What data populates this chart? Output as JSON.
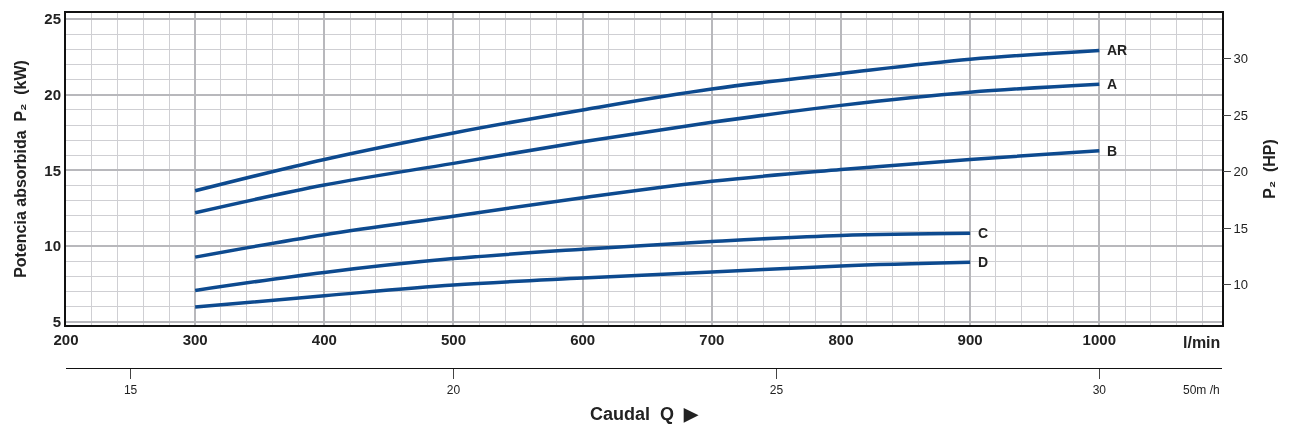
{
  "chart_data": {
    "type": "line",
    "xlabel": "l/min",
    "ylabel": "Potencia absorbida  P₂  (kW)",
    "y2label": "P₂  (HP)",
    "x2label": "50m /h",
    "annotations": [
      "Caudal  Q  ▶"
    ],
    "xlim": [
      200,
      1095
    ],
    "xticks": [
      200,
      300,
      400,
      500,
      600,
      700,
      800,
      900,
      1000
    ],
    "ylim": [
      4.8,
      25.4
    ],
    "yticks": [
      5,
      10,
      15,
      20,
      25
    ],
    "y2lim": [
      6.44,
      34.06
    ],
    "y2ticks": [
      10,
      15,
      20,
      25,
      30
    ],
    "x2lim": [
      14,
      31.9
    ],
    "x2ticks": [
      15,
      20,
      25,
      30
    ],
    "x": [
      300,
      400,
      500,
      600,
      700,
      800,
      900,
      1000
    ],
    "grid": true,
    "legend": false,
    "marker": "none",
    "line_style": "solid",
    "series": [
      {
        "name": "AR",
        "color": "#0d4a8f",
        "values": [
          13.66,
          15.73,
          17.48,
          19.0,
          20.38,
          21.4,
          22.34,
          22.93
        ]
      },
      {
        "name": "A",
        "color": "#0d4a8f",
        "values": [
          12.21,
          14.04,
          15.47,
          16.9,
          18.18,
          19.3,
          20.17,
          20.7
        ]
      },
      {
        "name": "B",
        "color": "#0d4a8f",
        "values": [
          9.28,
          10.76,
          11.98,
          13.2,
          14.29,
          15.06,
          15.73,
          16.3
        ]
      },
      {
        "name": "C",
        "color": "#0d4a8f",
        "values": [
          7.08,
          8.27,
          9.18,
          9.8,
          10.31,
          10.71,
          10.85,
          null
        ]
      },
      {
        "name": "D",
        "color": "#0d4a8f",
        "values": [
          5.98,
          6.73,
          7.44,
          7.9,
          8.3,
          8.7,
          8.94,
          null
        ]
      }
    ]
  }
}
